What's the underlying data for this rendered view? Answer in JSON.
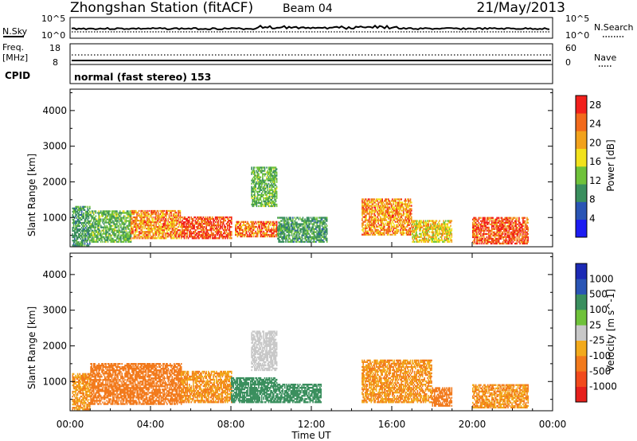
{
  "header": {
    "title": "Zhongshan Station (fitACF)",
    "beam": "Beam 04",
    "date": "21/May/2013"
  },
  "labels": {
    "nsky": "N.Sky",
    "nsearch": "N.Search",
    "freq_line1": "Freq.",
    "freq_line2": "[MHz]",
    "nave": "Nave",
    "cpid": "CPID",
    "mode": "normal (fast stereo) 153"
  },
  "noise_axis": {
    "left_top": "10^5",
    "left_bottom": "10^0",
    "right_top": "10^5",
    "right_bottom": "10^0"
  },
  "freq_axis": {
    "left_top": "18",
    "left_bottom": "8",
    "right_top": "60",
    "right_bottom": "0"
  },
  "x_axis": {
    "label": "Time UT",
    "ticks": [
      "00:00",
      "04:00",
      "08:00",
      "12:00",
      "16:00",
      "20:00",
      "00:00"
    ]
  },
  "colors": {
    "power_scale": [
      "#1c1cf2",
      "#2a55b5",
      "#3a8f5e",
      "#6fc23a",
      "#f2e21c",
      "#f2a21c",
      "#f26a1c",
      "#f2201c"
    ],
    "velocity_scale": [
      "#e6201c",
      "#f24a1c",
      "#f27a1c",
      "#f2aa1c",
      "#c8c8c8",
      "#6fc23a",
      "#3a8f5e",
      "#2a55b5",
      "#1c2ab5"
    ]
  },
  "chart_data": [
    {
      "type": "heatmap",
      "panel": "power",
      "ylabel": "Slant Range [km]",
      "xlabel": "",
      "yticks": [
        1000,
        2000,
        3000,
        4000
      ],
      "ylim": [
        180,
        4600
      ],
      "xlim_hours": [
        0,
        24
      ],
      "colorbar": {
        "label": "Power [dB]",
        "ticks": [
          4,
          8,
          12,
          16,
          20,
          24,
          28
        ],
        "range": [
          0,
          30
        ]
      },
      "echo_regions": [
        {
          "t0": 0.1,
          "t1": 1.0,
          "r0": 200,
          "r1": 1300,
          "level": 10
        },
        {
          "t0": 1.0,
          "t1": 3.0,
          "r0": 300,
          "r1": 1200,
          "level": 12
        },
        {
          "t0": 3.0,
          "t1": 5.5,
          "r0": 400,
          "r1": 1200,
          "level": 22
        },
        {
          "t0": 5.5,
          "t1": 8.0,
          "r0": 400,
          "r1": 1000,
          "level": 27
        },
        {
          "t0": 8.2,
          "t1": 10.3,
          "r0": 450,
          "r1": 900,
          "level": 24
        },
        {
          "t0": 9.0,
          "t1": 10.3,
          "r0": 1300,
          "r1": 2400,
          "level": 12
        },
        {
          "t0": 10.3,
          "t1": 12.8,
          "r0": 300,
          "r1": 1000,
          "level": 10
        },
        {
          "t0": 14.5,
          "t1": 17.0,
          "r0": 500,
          "r1": 1500,
          "level": 22
        },
        {
          "t0": 17.0,
          "t1": 19.0,
          "r0": 300,
          "r1": 900,
          "level": 18
        },
        {
          "t0": 20.0,
          "t1": 22.8,
          "r0": 250,
          "r1": 1000,
          "level": 26
        }
      ]
    },
    {
      "type": "heatmap",
      "panel": "velocity",
      "ylabel": "Slant Range [km]",
      "xlabel": "Time UT",
      "yticks": [
        1000,
        2000,
        3000,
        4000
      ],
      "ylim": [
        180,
        4600
      ],
      "xlim_hours": [
        0,
        24
      ],
      "colorbar": {
        "label": "Velocity [m s^-1]",
        "ticks": [
          -1000,
          -500,
          -100,
          -25,
          25,
          100,
          500,
          1000
        ]
      },
      "echo_regions": [
        {
          "t0": 0.1,
          "t1": 1.0,
          "r0": 200,
          "r1": 1200,
          "level": -100
        },
        {
          "t0": 1.0,
          "t1": 5.5,
          "r0": 350,
          "r1": 1500,
          "level": -150
        },
        {
          "t0": 5.5,
          "t1": 8.0,
          "r0": 400,
          "r1": 1300,
          "level": -100
        },
        {
          "t0": 8.0,
          "t1": 10.3,
          "r0": 400,
          "r1": 1100,
          "level": 150
        },
        {
          "t0": 9.0,
          "t1": 10.3,
          "r0": 1300,
          "r1": 2400,
          "level": 0
        },
        {
          "t0": 10.3,
          "t1": 12.5,
          "r0": 400,
          "r1": 900,
          "level": 300
        },
        {
          "t0": 14.5,
          "t1": 18.0,
          "r0": 400,
          "r1": 1600,
          "level": -100
        },
        {
          "t0": 18.0,
          "t1": 19.0,
          "r0": 300,
          "r1": 800,
          "level": -300
        },
        {
          "t0": 20.0,
          "t1": 22.8,
          "r0": 250,
          "r1": 900,
          "level": -100
        }
      ]
    }
  ]
}
